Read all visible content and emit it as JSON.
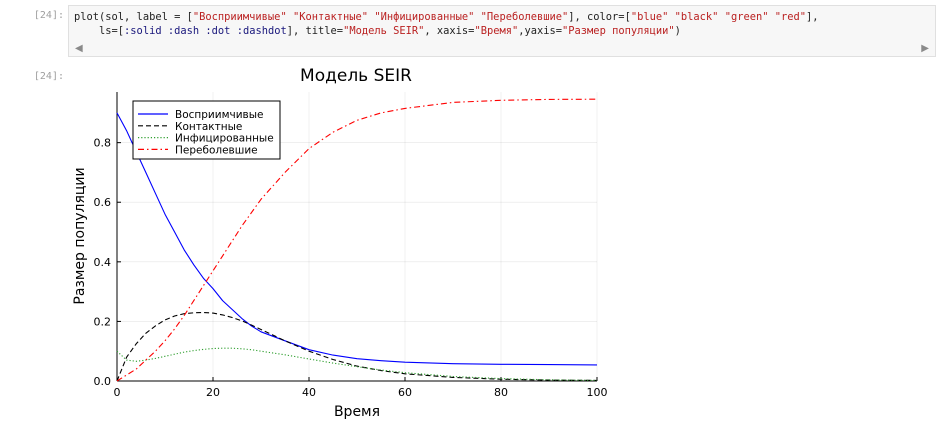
{
  "cell": {
    "input_prompt": "[24]:",
    "output_prompt": "[24]:",
    "code_line1": {
      "a": "plot(sol, label = [",
      "s1": "\"Восприимчивые\"",
      "s2": "\"Контактные\"",
      "s3": "\"Инфицированные\"",
      "s4": "\"Переболевшие\"",
      "b": "], color=[",
      "c1": "\"blue\"",
      "c2": "\"black\"",
      "c3": "\"green\"",
      "c4": "\"red\"",
      "c": "],"
    },
    "code_line2": {
      "a": "    ls=[",
      "y1": ":solid",
      "y2": ":dash",
      "y3": ":dot",
      "y4": ":dashdot",
      "b": "], title=",
      "t": "\"Модель SEIR\"",
      "c": ", xaxis=",
      "x": "\"Время\"",
      "d": ",yaxis=",
      "y": "\"Размер популяции\"",
      "e": ")"
    },
    "scroll_left_icon": "triangle-left",
    "scroll_right_icon": "triangle-right"
  },
  "chart_data": {
    "type": "line",
    "title": "Модель SEIR",
    "xlabel": "Время",
    "ylabel": "Размер популяции",
    "xlim": [
      0,
      100
    ],
    "ylim": [
      0,
      0.97
    ],
    "xticks": [
      0,
      20,
      40,
      60,
      80,
      100
    ],
    "xtick_labels": [
      "0",
      "20",
      "40",
      "60",
      "80",
      "100"
    ],
    "yticks": [
      0,
      0.2,
      0.4,
      0.6,
      0.8
    ],
    "ytick_labels": [
      "0.0",
      "0.2",
      "0.4",
      "0.6",
      "0.8"
    ],
    "grid": true,
    "legend_position": "top-left",
    "x": [
      0,
      2,
      4,
      6,
      8,
      10,
      12,
      14,
      16,
      18,
      20,
      22,
      24,
      26,
      28,
      30,
      35,
      40,
      45,
      50,
      55,
      60,
      70,
      80,
      90,
      100
    ],
    "series": [
      {
        "name": "Восприимчивые",
        "color": "#0000ff",
        "dash": "solid",
        "values": [
          0.9,
          0.84,
          0.77,
          0.7,
          0.63,
          0.56,
          0.5,
          0.44,
          0.39,
          0.345,
          0.31,
          0.27,
          0.24,
          0.21,
          0.185,
          0.165,
          0.135,
          0.105,
          0.087,
          0.075,
          0.068,
          0.063,
          0.058,
          0.056,
          0.055,
          0.054
        ]
      },
      {
        "name": "Контактные",
        "color": "#000000",
        "dash": "dash",
        "values": [
          0.0,
          0.08,
          0.125,
          0.16,
          0.185,
          0.205,
          0.218,
          0.226,
          0.229,
          0.23,
          0.228,
          0.222,
          0.213,
          0.202,
          0.188,
          0.173,
          0.135,
          0.1,
          0.072,
          0.05,
          0.035,
          0.024,
          0.012,
          0.006,
          0.003,
          0.002
        ]
      },
      {
        "name": "Инфицированные",
        "color": "#2e9e2e",
        "dash": "dot",
        "values": [
          0.1,
          0.07,
          0.066,
          0.07,
          0.076,
          0.083,
          0.09,
          0.097,
          0.102,
          0.106,
          0.109,
          0.11,
          0.11,
          0.108,
          0.105,
          0.1,
          0.088,
          0.074,
          0.06,
          0.048,
          0.037,
          0.028,
          0.015,
          0.008,
          0.004,
          0.002
        ]
      },
      {
        "name": "Переболевшие",
        "color": "#ff0000",
        "dash": "dashdot",
        "values": [
          0.0,
          0.02,
          0.04,
          0.07,
          0.1,
          0.135,
          0.175,
          0.22,
          0.27,
          0.32,
          0.37,
          0.42,
          0.47,
          0.52,
          0.565,
          0.61,
          0.7,
          0.78,
          0.835,
          0.875,
          0.9,
          0.915,
          0.935,
          0.942,
          0.945,
          0.946
        ]
      }
    ]
  }
}
